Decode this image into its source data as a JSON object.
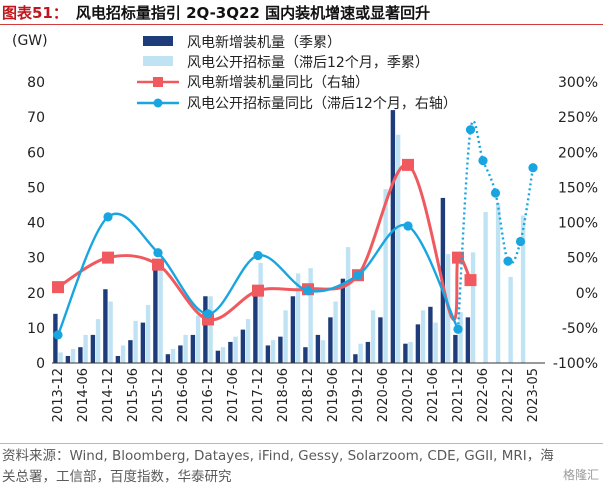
{
  "header": {
    "figure_label": "图表51：",
    "title": "风电招标量指引 2Q-3Q22 国内装机增速或显著回升"
  },
  "footer": {
    "source": "资料来源：Wind, Bloomberg, Datayes, iFind, Gessy, Solarzoom, CDE, GGII, MRI，海关总署，工信部，百度指数，华泰研究",
    "watermark": "格隆汇"
  },
  "colors": {
    "bar_new_install": "#1f3c7a",
    "bar_tender": "#bfe3f3",
    "line_install_yoy": "#f05a5f",
    "line_tender_yoy": "#19a5e0",
    "title_accent": "#c0161c"
  },
  "chart_data": {
    "type": "bar",
    "y_unit": "(GW)",
    "ylim_left": [
      0,
      80
    ],
    "yticks_left": [
      0,
      10,
      20,
      30,
      40,
      50,
      60,
      70,
      80
    ],
    "ylim_right": [
      -100,
      300
    ],
    "yticks_right": [
      "-100%",
      "-50%",
      "0%",
      "50%",
      "100%",
      "150%",
      "200%",
      "250%",
      "300%"
    ],
    "yticks_right_values": [
      -100,
      -50,
      0,
      50,
      100,
      150,
      200,
      250,
      300
    ],
    "x_tick_labels": [
      "2013-12",
      "2014-06",
      "2014-12",
      "2015-06",
      "2015-12",
      "2016-06",
      "2016-12",
      "2017-06",
      "2017-12",
      "2018-06",
      "2018-12",
      "2019-06",
      "2019-12",
      "2020-06",
      "2020-12",
      "2021-06",
      "2021-12",
      "2022-06",
      "2022-12",
      "2023-05"
    ],
    "series": [
      {
        "name": "风电新增装机量（季累）",
        "kind": "bar",
        "axis": "left",
        "values": [
          14,
          2,
          4.5,
          8,
          21,
          2,
          6.5,
          11.5,
          27,
          2.5,
          5,
          8,
          19,
          3.5,
          6,
          9.5,
          20,
          5,
          7.5,
          19,
          4.5,
          8,
          13,
          24,
          2.5,
          6,
          13,
          72,
          5.5,
          11,
          16,
          47,
          8,
          13
        ]
      },
      {
        "name": "风电公开招标量（滞后12个月，季累）",
        "kind": "bar",
        "axis": "left",
        "values": [
          3,
          4,
          8,
          12.5,
          17.5,
          5,
          12,
          16.5,
          28.5,
          4,
          8,
          13.5,
          19,
          4.5,
          7.5,
          12.5,
          28.5,
          6.5,
          15,
          25.5,
          27,
          6.5,
          17.5,
          33,
          5.5,
          15,
          49.5,
          65,
          6,
          15,
          11.5,
          31,
          14.5,
          31.5,
          43,
          45.5,
          24.5,
          42
        ]
      },
      {
        "name": "风电新增装机量同比（右轴）",
        "kind": "line",
        "axis": "right",
        "style": "solid",
        "points": [
          [
            0,
            8
          ],
          [
            4,
            50
          ],
          [
            8,
            40
          ],
          [
            12,
            -38
          ],
          [
            16,
            3
          ],
          [
            20,
            5
          ],
          [
            24,
            25
          ],
          [
            28,
            182
          ],
          [
            31.5,
            -35
          ],
          [
            32,
            50
          ],
          [
            33,
            18
          ]
        ]
      },
      {
        "name": "风电公开招标量同比（滞后12个月，右轴）",
        "kind": "line",
        "axis": "right",
        "style": "solid-then-dotted",
        "points": [
          [
            0,
            -60
          ],
          [
            4,
            108
          ],
          [
            8,
            57
          ],
          [
            12,
            -30
          ],
          [
            16,
            53
          ],
          [
            20,
            3
          ],
          [
            24,
            25
          ],
          [
            28,
            95
          ],
          [
            32,
            -52
          ],
          [
            33,
            232
          ],
          [
            34,
            188
          ],
          [
            35,
            142
          ],
          [
            36,
            45
          ],
          [
            37,
            73
          ],
          [
            38,
            178
          ]
        ],
        "dotted_from_index": 9
      }
    ],
    "legend": "top-center",
    "grid": false
  }
}
